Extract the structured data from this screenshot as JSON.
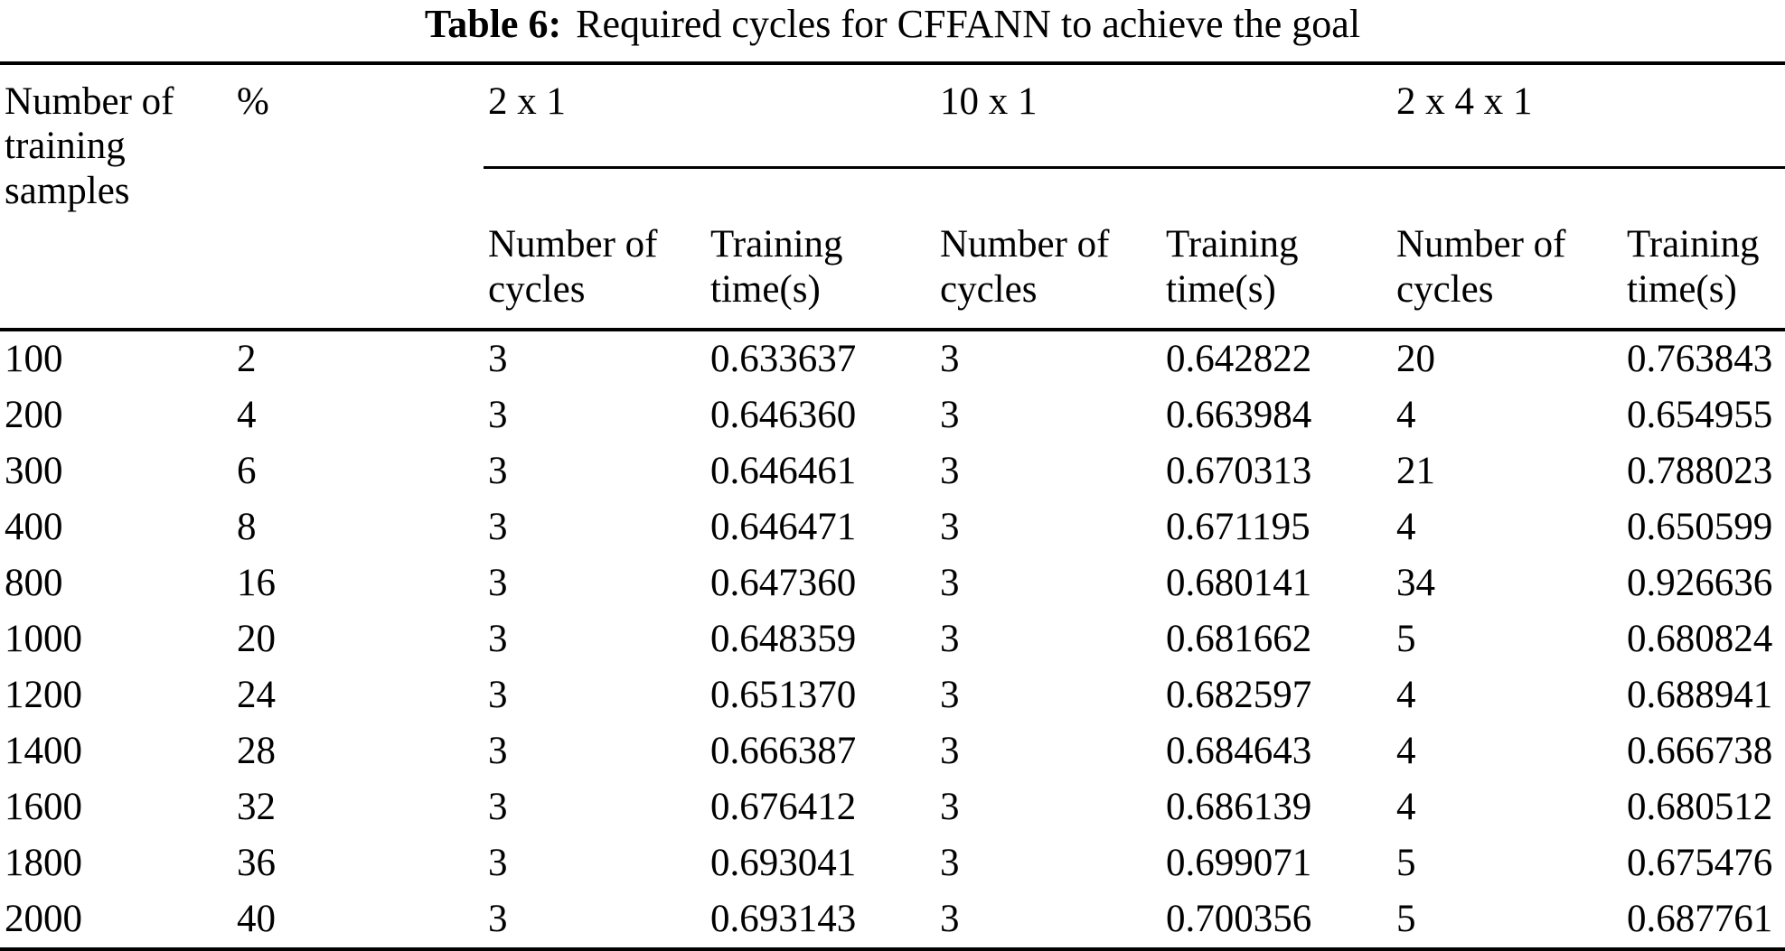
{
  "page": {
    "background": "#ffffff",
    "text_color": "#000000",
    "rule_color": "#000000"
  },
  "title": {
    "label": "Table 6:",
    "text": "Required cycles for CFFANN to achieve the goal"
  },
  "table": {
    "corner_headers": [
      "Number of training samples",
      "%"
    ],
    "groups": [
      "2 x 1",
      "10 x 1",
      "2 x 4 x 1"
    ],
    "subheaders": [
      "Number of cycles",
      "Training time(s)",
      "Number of cycles",
      "Training time(s)",
      "Number of cycles",
      "Training time(s)"
    ],
    "rows": [
      [
        "100",
        "2",
        "3",
        "0.633637",
        "3",
        "0.642822",
        "20",
        "0.763843"
      ],
      [
        "200",
        "4",
        "3",
        "0.646360",
        "3",
        "0.663984",
        "4",
        "0.654955"
      ],
      [
        "300",
        "6",
        "3",
        "0.646461",
        "3",
        "0.670313",
        "21",
        "0.788023"
      ],
      [
        "400",
        "8",
        "3",
        "0.646471",
        "3",
        "0.671195",
        "4",
        "0.650599"
      ],
      [
        "800",
        "16",
        "3",
        "0.647360",
        "3",
        "0.680141",
        "34",
        "0.926636"
      ],
      [
        "1000",
        "20",
        "3",
        "0.648359",
        "3",
        "0.681662",
        "5",
        "0.680824"
      ],
      [
        "1200",
        "24",
        "3",
        "0.651370",
        "3",
        "0.682597",
        "4",
        "0.688941"
      ],
      [
        "1400",
        "28",
        "3",
        "0.666387",
        "3",
        "0.684643",
        "4",
        "0.666738"
      ],
      [
        "1600",
        "32",
        "3",
        "0.676412",
        "3",
        "0.686139",
        "4",
        "0.680512"
      ],
      [
        "1800",
        "36",
        "3",
        "0.693041",
        "3",
        "0.699071",
        "5",
        "0.675476"
      ],
      [
        "2000",
        "40",
        "3",
        "0.693143",
        "3",
        "0.700356",
        "5",
        "0.687761"
      ]
    ]
  }
}
